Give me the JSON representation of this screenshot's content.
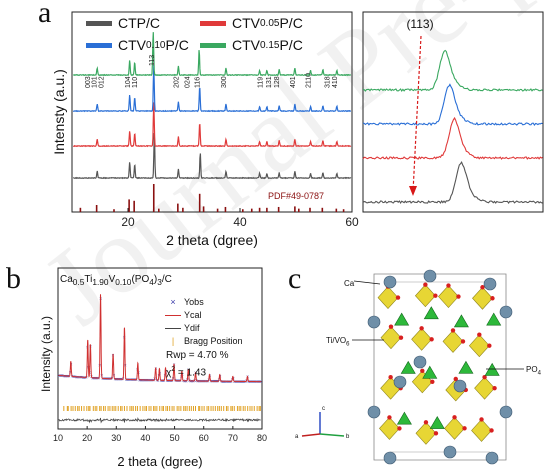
{
  "figure": {
    "panel_a": {
      "letter": "a",
      "legend": [
        {
          "label_main": "CTP/C",
          "label_sub": "",
          "label_tail": "",
          "color": "#555555"
        },
        {
          "label_main": "CTV",
          "label_sub": "0.05",
          "label_tail": "P/C",
          "color": "#e03a3a"
        },
        {
          "label_main": "CTV",
          "label_sub": "0.10",
          "label_tail": "P/C",
          "color": "#2a6fd6"
        },
        {
          "label_main": "CTV",
          "label_sub": "0.15",
          "label_tail": "P/C",
          "color": "#3aa860"
        }
      ],
      "peak_labels": [
        "003",
        "101",
        "012",
        "104",
        "110",
        "113",
        "202",
        "024",
        "116",
        "300",
        "119",
        "131",
        "128",
        "401",
        "2110",
        "318",
        "410"
      ],
      "ref_label": "PDF#49-0787",
      "inset_label": "(113)"
    },
    "panel_b": {
      "letter": "b",
      "formula": {
        "p1": "Ca",
        "s1": "0.5",
        "p2": "Ti",
        "s2": "1.90",
        "p3": "V",
        "s3": "0.10",
        "p4": "(PO",
        "s4": "4",
        "p5": ")",
        "s5": "3",
        "p6": "/C"
      },
      "legend": [
        {
          "label": "Yobs",
          "marker": "×",
          "color": "#3a3aa8"
        },
        {
          "label": "Ycal",
          "marker": "line",
          "color": "#d03030"
        },
        {
          "label": "Ydif",
          "marker": "line",
          "color": "#444444"
        },
        {
          "label": "Bragg Position",
          "marker": "|",
          "color": "#e0a020"
        }
      ],
      "rwp": "Rwp = 4.70 %",
      "chi_label": "χ",
      "chi_sup": "2",
      "chi_value": " = 1.43"
    },
    "panel_c": {
      "letter": "c",
      "labels": {
        "ca": "Ca",
        "tivo": "Ti/VO",
        "tivo_sub": "6",
        "po": "PO",
        "po_sub": "4"
      },
      "axes": {
        "a": "a",
        "b": "b",
        "c": "c"
      }
    }
  },
  "chart_data": [
    {
      "type": "line",
      "panel": "a",
      "xlabel": "2 theta (dgree)",
      "ylabel": "Intensty (a.u.)",
      "xlim": [
        10,
        60
      ],
      "xticks": [
        20,
        40,
        60
      ],
      "series": [
        {
          "name": "CTP/C",
          "color": "#555555",
          "offset": 0,
          "peaks": [
            [
              14.5,
              0.15
            ],
            [
              20.3,
              0.35
            ],
            [
              21.2,
              0.3
            ],
            [
              24.7,
              1.0
            ],
            [
              29.0,
              0.2
            ],
            [
              32.9,
              0.55
            ],
            [
              37.5,
              0.15
            ],
            [
              43.5,
              0.1
            ],
            [
              44.8,
              0.1
            ],
            [
              47.0,
              0.12
            ],
            [
              49.8,
              0.15
            ],
            [
              52.6,
              0.1
            ],
            [
              54.8,
              0.12
            ],
            [
              57.3,
              0.1
            ]
          ]
        },
        {
          "name": "CTV0.05P/C",
          "color": "#e03a3a",
          "offset": 1,
          "peaks": [
            [
              14.5,
              0.15
            ],
            [
              20.3,
              0.33
            ],
            [
              21.2,
              0.28
            ],
            [
              24.6,
              0.95
            ],
            [
              29.0,
              0.2
            ],
            [
              32.8,
              0.52
            ],
            [
              37.5,
              0.15
            ],
            [
              43.5,
              0.1
            ],
            [
              44.8,
              0.1
            ],
            [
              47.0,
              0.12
            ],
            [
              49.8,
              0.15
            ],
            [
              52.6,
              0.1
            ],
            [
              54.8,
              0.12
            ],
            [
              57.3,
              0.1
            ]
          ]
        },
        {
          "name": "CTV0.10P/C",
          "color": "#2a6fd6",
          "offset": 2,
          "peaks": [
            [
              14.5,
              0.15
            ],
            [
              20.3,
              0.35
            ],
            [
              21.2,
              0.3
            ],
            [
              24.6,
              1.0
            ],
            [
              29.0,
              0.2
            ],
            [
              32.8,
              0.55
            ],
            [
              37.5,
              0.15
            ],
            [
              43.5,
              0.1
            ],
            [
              44.8,
              0.1
            ],
            [
              47.0,
              0.12
            ],
            [
              49.8,
              0.15
            ],
            [
              52.6,
              0.1
            ],
            [
              54.8,
              0.12
            ],
            [
              57.3,
              0.1
            ]
          ]
        },
        {
          "name": "CTV0.15P/C",
          "color": "#3aa860",
          "offset": 3,
          "peaks": [
            [
              14.5,
              0.15
            ],
            [
              20.3,
              0.33
            ],
            [
              21.2,
              0.28
            ],
            [
              24.5,
              0.95
            ],
            [
              29.0,
              0.2
            ],
            [
              32.7,
              0.55
            ],
            [
              37.5,
              0.15
            ],
            [
              43.5,
              0.1
            ],
            [
              44.8,
              0.1
            ],
            [
              47.0,
              0.12
            ],
            [
              49.8,
              0.15
            ],
            [
              52.6,
              0.1
            ],
            [
              54.8,
              0.12
            ],
            [
              57.3,
              0.1
            ]
          ]
        }
      ],
      "reference_sticks": [
        [
          11.5,
          0.15
        ],
        [
          14.4,
          0.25
        ],
        [
          17.5,
          0.1
        ],
        [
          20.2,
          0.45
        ],
        [
          21.1,
          0.4
        ],
        [
          24.6,
          1.0
        ],
        [
          25.5,
          0.12
        ],
        [
          28.9,
          0.3
        ],
        [
          29.8,
          0.15
        ],
        [
          32.8,
          0.65
        ],
        [
          33.5,
          0.2
        ],
        [
          36.0,
          0.12
        ],
        [
          37.4,
          0.18
        ],
        [
          40.5,
          0.1
        ],
        [
          42.1,
          0.12
        ],
        [
          43.5,
          0.15
        ],
        [
          44.8,
          0.15
        ],
        [
          46.9,
          0.18
        ],
        [
          49.8,
          0.2
        ],
        [
          50.5,
          0.12
        ],
        [
          52.5,
          0.15
        ],
        [
          54.7,
          0.15
        ],
        [
          57.2,
          0.12
        ],
        [
          58.5,
          0.1
        ]
      ]
    },
    {
      "type": "line",
      "panel": "a-inset",
      "xlim": [
        23.5,
        25.8
      ],
      "series": [
        {
          "name": "CTP/C",
          "color": "#555555",
          "center": 24.75
        },
        {
          "name": "CTV0.05P/C",
          "color": "#e03a3a",
          "center": 24.66
        },
        {
          "name": "CTV0.10P/C",
          "color": "#2a6fd6",
          "center": 24.6
        },
        {
          "name": "CTV0.15P/C",
          "color": "#3aa860",
          "center": 24.54
        }
      ]
    },
    {
      "type": "scatter",
      "panel": "b",
      "xlabel": "2 theta (dgree)",
      "ylabel": "Intensity (a.u.)",
      "xlim": [
        10,
        80
      ],
      "xticks": [
        10,
        20,
        30,
        40,
        50,
        60,
        70,
        80
      ],
      "peaks": [
        [
          14.4,
          0.18
        ],
        [
          20.2,
          0.45
        ],
        [
          21.1,
          0.4
        ],
        [
          24.6,
          1.0
        ],
        [
          28.9,
          0.3
        ],
        [
          32.8,
          0.62
        ],
        [
          37.4,
          0.2
        ],
        [
          43.5,
          0.15
        ],
        [
          44.8,
          0.14
        ],
        [
          46.9,
          0.15
        ],
        [
          49.8,
          0.2
        ],
        [
          52.5,
          0.12
        ],
        [
          54.7,
          0.14
        ],
        [
          57.2,
          0.1
        ],
        [
          62.0,
          0.08
        ],
        [
          65.5,
          0.08
        ],
        [
          70.0,
          0.06
        ],
        [
          75.0,
          0.06
        ]
      ]
    }
  ]
}
